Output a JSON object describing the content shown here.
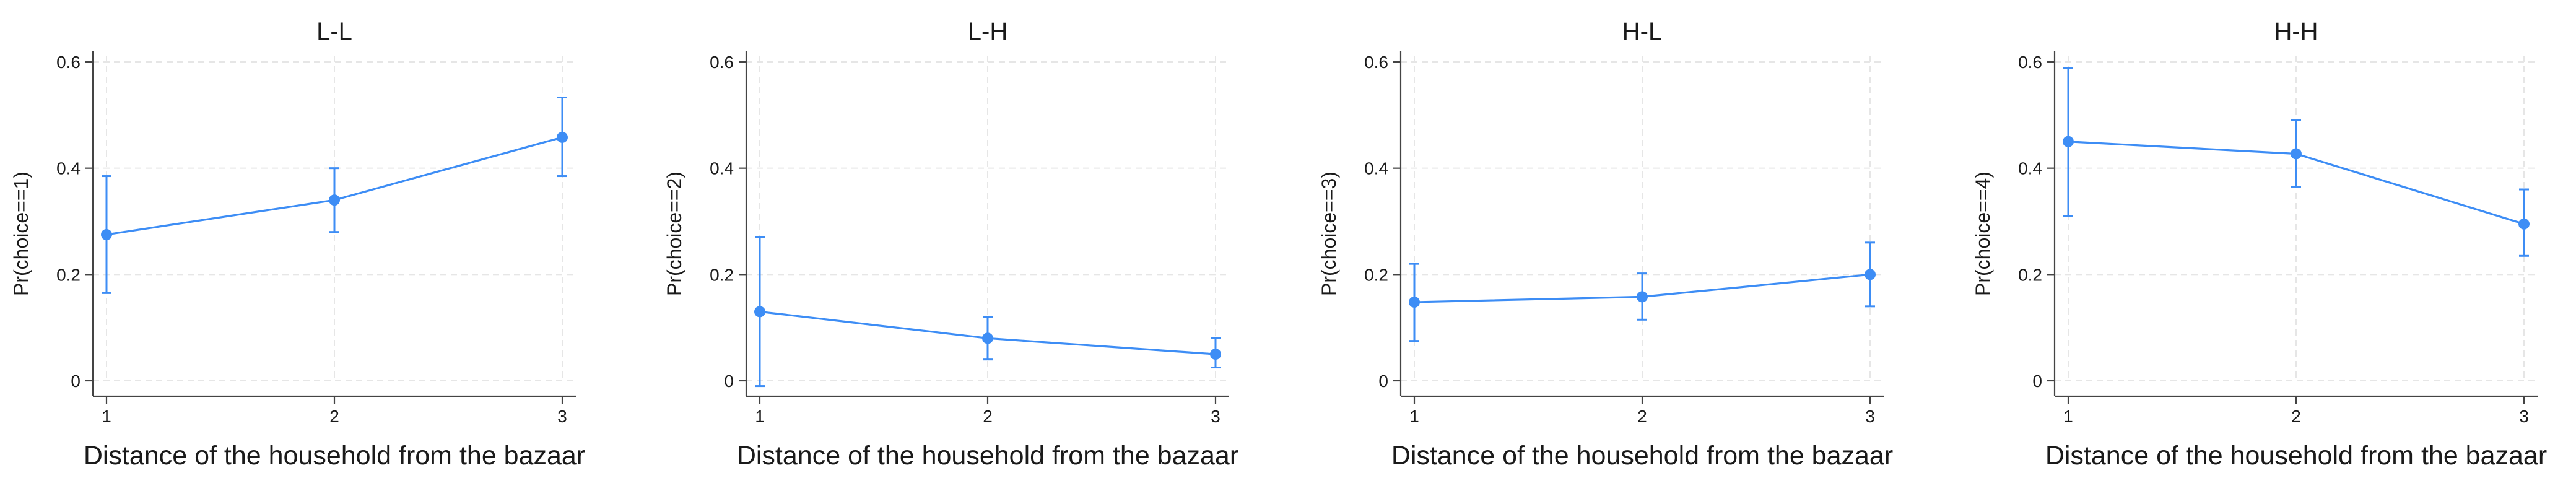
{
  "chart_data": [
    {
      "type": "line",
      "title": "L-L",
      "xlabel": "Distance of the household from the bazaar",
      "ylabel": "Pr(choice==1)",
      "x": [
        1,
        2,
        3
      ],
      "y": [
        0.275,
        0.34,
        0.458
      ],
      "ci_lower": [
        0.165,
        0.28,
        0.385
      ],
      "ci_upper": [
        0.385,
        0.4,
        0.533
      ],
      "ylim": [
        0,
        0.6
      ],
      "yticks": [
        "0",
        "0.2",
        "0.4",
        "0.6"
      ],
      "xticks": [
        "1",
        "2",
        "3"
      ],
      "grid": true
    },
    {
      "type": "line",
      "title": "L-H",
      "xlabel": "Distance of the household from the bazaar",
      "ylabel": "Pr(choice==2)",
      "x": [
        1,
        2,
        3
      ],
      "y": [
        0.13,
        0.08,
        0.05
      ],
      "ci_lower": [
        -0.01,
        0.04,
        0.025
      ],
      "ci_upper": [
        0.27,
        0.12,
        0.08
      ],
      "ylim": [
        0,
        0.6
      ],
      "yticks": [
        "0",
        "0.2",
        "0.4",
        "0.6"
      ],
      "xticks": [
        "1",
        "2",
        "3"
      ],
      "grid": true
    },
    {
      "type": "line",
      "title": "H-L",
      "xlabel": "Distance of the household from the bazaar",
      "ylabel": "Pr(choice==3)",
      "x": [
        1,
        2,
        3
      ],
      "y": [
        0.148,
        0.158,
        0.2
      ],
      "ci_lower": [
        0.075,
        0.115,
        0.14
      ],
      "ci_upper": [
        0.22,
        0.202,
        0.26
      ],
      "ylim": [
        0,
        0.6
      ],
      "yticks": [
        "0",
        "0.2",
        "0.4",
        "0.6"
      ],
      "xticks": [
        "1",
        "2",
        "3"
      ],
      "grid": true
    },
    {
      "type": "line",
      "title": "H-H",
      "xlabel": "Distance of the household from the bazaar",
      "ylabel": "Pr(choice==4)",
      "x": [
        1,
        2,
        3
      ],
      "y": [
        0.45,
        0.427,
        0.295
      ],
      "ci_lower": [
        0.31,
        0.365,
        0.235
      ],
      "ci_upper": [
        0.588,
        0.49,
        0.36
      ],
      "ylim": [
        0,
        0.6
      ],
      "yticks": [
        "0",
        "0.2",
        "0.4",
        "0.6"
      ],
      "xticks": [
        "1",
        "2",
        "3"
      ],
      "grid": true
    }
  ],
  "colors": {
    "series": "#3d8df5",
    "axis": "#444444",
    "grid": "#e6e6e6"
  }
}
